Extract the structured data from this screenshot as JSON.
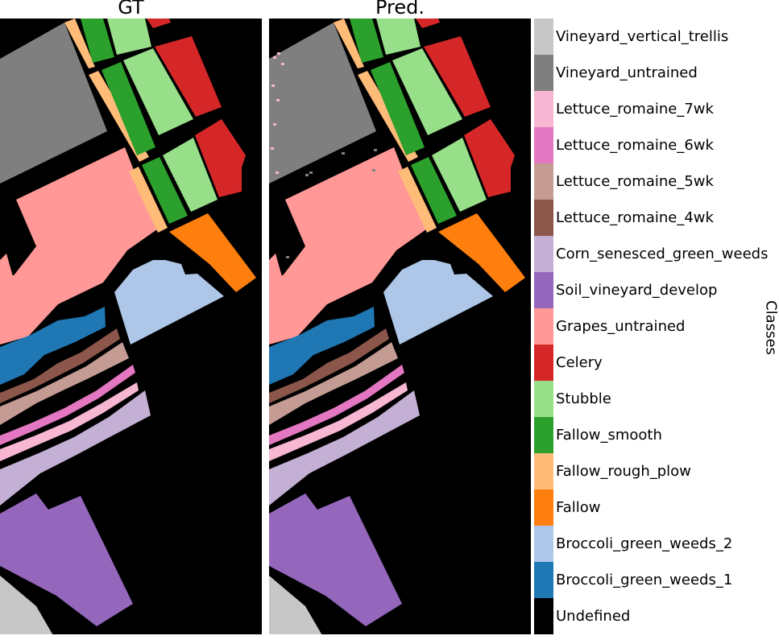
{
  "titles": {
    "left": "GT",
    "right": "Pred."
  },
  "colorbar": {
    "title": "Classes",
    "classes": [
      {
        "name": "Vineyard_vertical_trellis",
        "color": "#c7c7c7"
      },
      {
        "name": "Vineyard_untrained",
        "color": "#7f7f7f"
      },
      {
        "name": "Lettuce_romaine_7wk",
        "color": "#f7b6d2"
      },
      {
        "name": "Lettuce_romaine_6wk",
        "color": "#e377c2"
      },
      {
        "name": "Lettuce_romaine_5wk",
        "color": "#c49c94"
      },
      {
        "name": "Lettuce_romaine_4wk",
        "color": "#8c564b"
      },
      {
        "name": "Corn_senesced_green_weeds",
        "color": "#c5b0d5"
      },
      {
        "name": "Soil_vineyard_develop",
        "color": "#9467bd"
      },
      {
        "name": "Grapes_untrained",
        "color": "#ff9896"
      },
      {
        "name": "Celery",
        "color": "#d62728"
      },
      {
        "name": "Stubble",
        "color": "#98df8a"
      },
      {
        "name": "Fallow_smooth",
        "color": "#2ca02c"
      },
      {
        "name": "Fallow_rough_plow",
        "color": "#ffbb78"
      },
      {
        "name": "Fallow",
        "color": "#ff7f0e"
      },
      {
        "name": "Broccoli_green_weeds_2",
        "color": "#aec7e8"
      },
      {
        "name": "Broccoli_green_weeds_1",
        "color": "#1f77b4"
      },
      {
        "name": "Undefined",
        "color": "#000000"
      }
    ]
  }
}
